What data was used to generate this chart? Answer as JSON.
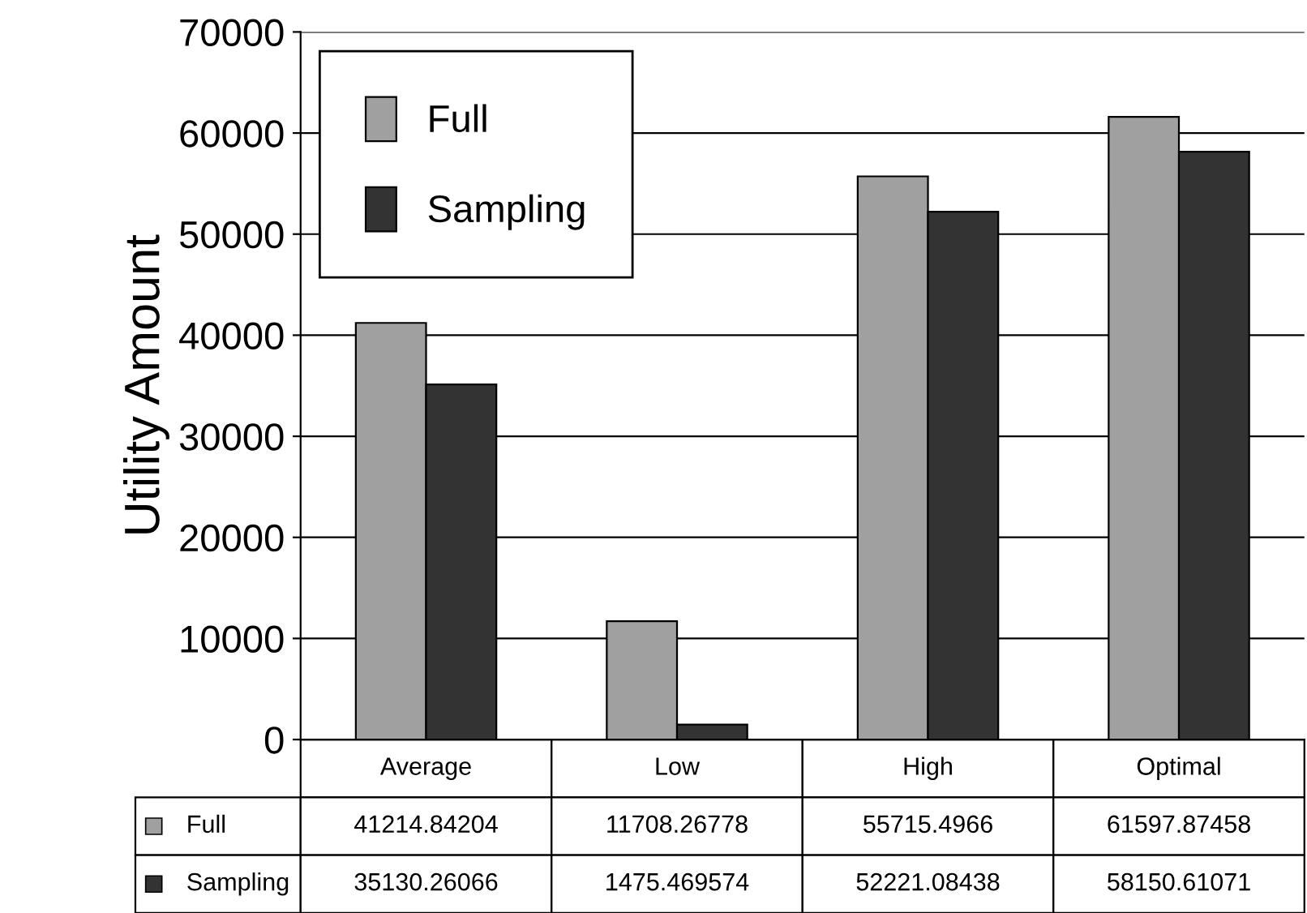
{
  "chart_data": {
    "type": "bar",
    "ylabel": "Utility Amount",
    "categories": [
      "Average",
      "Low",
      "High",
      "Optimal"
    ],
    "series": [
      {
        "name": "Full",
        "color": "#a0a0a0",
        "values": [
          41214.84204,
          11708.26778,
          55715.4966,
          61597.87458
        ]
      },
      {
        "name": "Sampling",
        "color": "#333333",
        "values": [
          35130.26066,
          1475.469574,
          52221.08438,
          58150.61071
        ]
      }
    ],
    "ylim": [
      0,
      70000
    ],
    "yticks": [
      0,
      10000,
      20000,
      30000,
      40000,
      50000,
      60000,
      70000
    ],
    "grid": "y",
    "legend": "top left",
    "data_labels": true
  }
}
